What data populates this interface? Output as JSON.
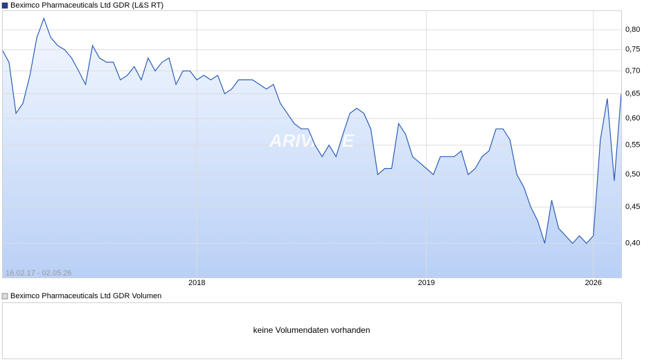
{
  "chart_data": {
    "type": "line",
    "legend": "Beximco Pharmaceuticals Ltd GDR (L&S RT)",
    "date_range": "16.02.17 - 02.05.26",
    "watermark": "ARIVA.DE",
    "log_scale": true,
    "grid": true,
    "color": "#2a5cb8",
    "categories": [
      null,
      null,
      null,
      null,
      null,
      null,
      null,
      null,
      null,
      null,
      null,
      null,
      null,
      null,
      null,
      null,
      null,
      null,
      null,
      null,
      null,
      null,
      null,
      null,
      null,
      null,
      null,
      null,
      "2018",
      null,
      null,
      null,
      null,
      null,
      null,
      null,
      null,
      null,
      null,
      null,
      null,
      null,
      null,
      null,
      null,
      null,
      null,
      null,
      null,
      null,
      null,
      null,
      null,
      null,
      null,
      null,
      null,
      null,
      null,
      null,
      null,
      "2019",
      null,
      null,
      null,
      null,
      null,
      null,
      null,
      null,
      null,
      null,
      null,
      null,
      null,
      null,
      null,
      null,
      null,
      null,
      null,
      null,
      null,
      null,
      null,
      "2026",
      null,
      null,
      null,
      null
    ],
    "values": [
      0.75,
      0.72,
      0.61,
      0.63,
      0.69,
      0.78,
      0.83,
      0.78,
      0.76,
      0.75,
      0.73,
      0.7,
      0.67,
      0.76,
      0.73,
      0.72,
      0.72,
      0.68,
      0.69,
      0.71,
      0.68,
      0.73,
      0.7,
      0.72,
      0.73,
      0.67,
      0.7,
      0.7,
      0.68,
      0.69,
      0.68,
      0.69,
      0.65,
      0.66,
      0.68,
      0.68,
      0.68,
      0.67,
      0.66,
      0.67,
      0.63,
      0.61,
      0.59,
      0.58,
      0.58,
      0.55,
      0.53,
      0.55,
      0.53,
      0.57,
      0.61,
      0.62,
      0.61,
      0.58,
      0.5,
      0.51,
      0.51,
      0.59,
      0.57,
      0.53,
      0.52,
      0.51,
      0.5,
      0.53,
      0.53,
      0.53,
      0.54,
      0.5,
      0.51,
      0.53,
      0.54,
      0.58,
      0.58,
      0.56,
      0.5,
      0.48,
      0.45,
      0.43,
      0.4,
      0.46,
      0.42,
      0.41,
      0.4,
      0.41,
      0.4,
      0.41,
      0.56,
      0.64,
      0.49,
      0.65
    ],
    "ylim": [
      0.358,
      0.852
    ],
    "yticks": [
      {
        "value": 0.4,
        "label": "0,40"
      },
      {
        "value": 0.45,
        "label": "0,45"
      },
      {
        "value": 0.5,
        "label": "0,50"
      },
      {
        "value": 0.55,
        "label": "0,55"
      },
      {
        "value": 0.6,
        "label": "0,60"
      },
      {
        "value": 0.65,
        "label": "0,65"
      },
      {
        "value": 0.7,
        "label": "0,70"
      },
      {
        "value": 0.75,
        "label": "0,75"
      },
      {
        "value": 0.8,
        "label": "0,80"
      }
    ]
  },
  "volume_panel": {
    "legend": "Beximco Pharmaceuticals Ltd GDR Volumen",
    "message": "keine Volumendaten vorhanden"
  }
}
